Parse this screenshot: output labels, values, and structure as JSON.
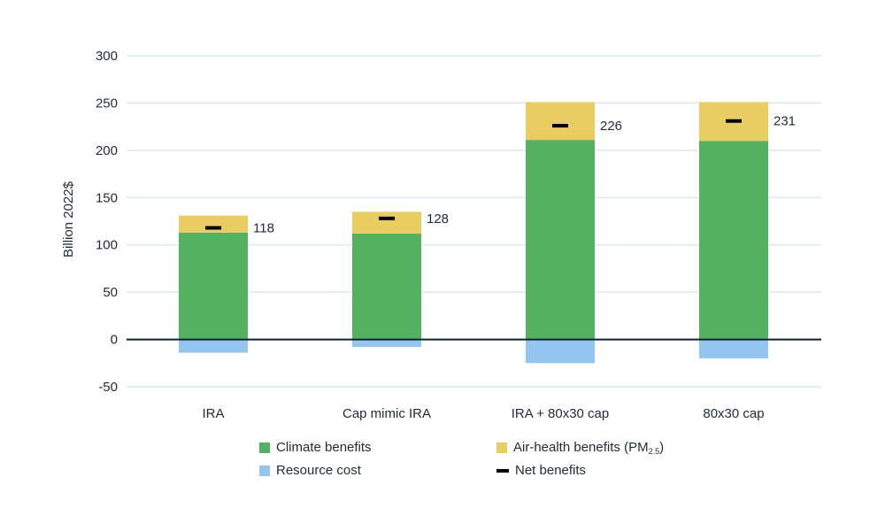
{
  "chart_data": {
    "type": "bar",
    "stacked": true,
    "categories": [
      "IRA",
      "Cap mimic IRA",
      "IRA + 80x30 cap",
      "80x30 cap"
    ],
    "series": [
      {
        "name": "Climate benefits",
        "color": "#54b160",
        "values": [
          113,
          112,
          211,
          210
        ]
      },
      {
        "name": "Air-health benefits (PM2.5)",
        "color": "#eacd62",
        "values": [
          18,
          23,
          40,
          41
        ]
      },
      {
        "name": "Resource cost",
        "color": "#92c5f0",
        "values": [
          -14,
          -8,
          -25,
          -20
        ]
      }
    ],
    "net_benefits": {
      "name": "Net benefits",
      "color": "#000000",
      "values": [
        118,
        128,
        226,
        231
      ]
    },
    "ylabel": "Billion 2022$",
    "ylim": [
      -50,
      300
    ],
    "yticks": [
      300,
      250,
      200,
      150,
      100,
      50,
      0,
      -50
    ],
    "grid": true,
    "legend_position": "bottom"
  },
  "legend": {
    "climate": "Climate benefits",
    "air_main": "Air-health benefits (PM",
    "air_sub": "2.5",
    "air_close": ")",
    "resource": "Resource cost",
    "net": "Net benefits"
  }
}
